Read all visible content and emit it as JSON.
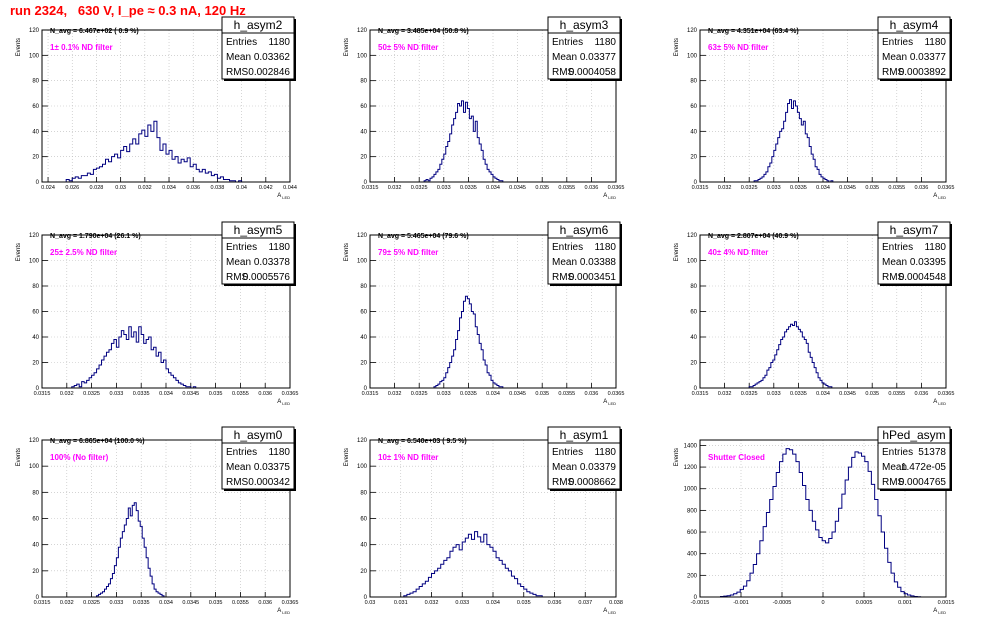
{
  "title": "run 2324,   630 V, I_pe ≈ 0.3 nA, 120 Hz",
  "colors": {
    "hist": "#000080",
    "note": "#ff00ff",
    "title": "#ff0000",
    "grid": "#bbbbbb"
  },
  "chart_data": [
    {
      "type": "histogram",
      "name": "h_asym2",
      "navg": "N_avg = 6.467e+02 ( 0.9 %)",
      "note": "1± 0.1% ND filter",
      "stats": {
        "Entries": "1180",
        "Mean": "0.03362",
        "RMS": "0.002846"
      },
      "ylabel": "Events",
      "xlabel": "A_LED",
      "ylim": [
        0,
        120
      ],
      "yticks": [
        0,
        20,
        40,
        60,
        80,
        100,
        120
      ],
      "xlim": [
        0.0235,
        0.044
      ],
      "xticks": [
        "0.024",
        "0.026",
        "0.028",
        "0.03",
        "0.032",
        "0.034",
        "0.036",
        "0.038",
        "0.04",
        "0.042",
        "0.044"
      ],
      "grid": true,
      "stats_box": "top-right",
      "bin_start": 0.0255,
      "bin_width": 0.00025,
      "counts": [
        2,
        1,
        3,
        4,
        3,
        5,
        5,
        7,
        6,
        10,
        11,
        12,
        14,
        18,
        16,
        20,
        22,
        19,
        25,
        28,
        24,
        30,
        34,
        30,
        38,
        41,
        36,
        45,
        40,
        48,
        35,
        25,
        30,
        22,
        25,
        18,
        20,
        15,
        18,
        16,
        19,
        12,
        14,
        10,
        8,
        10,
        7,
        8,
        5,
        6,
        3,
        4,
        2,
        2,
        1,
        1,
        0,
        1
      ]
    },
    {
      "type": "histogram",
      "name": "h_asym3",
      "navg": "N_avg = 3.485e+04 (50.8 %)",
      "note": "50± 5% ND filter",
      "stats": {
        "Entries": "1180",
        "Mean": "0.03377",
        "RMS": "0.0004058"
      },
      "ylabel": "Events",
      "xlabel": "A_LED",
      "ylim": [
        0,
        120
      ],
      "yticks": [
        0,
        20,
        40,
        60,
        80,
        100,
        120
      ],
      "xlim": [
        0.0315,
        0.0365
      ],
      "xticks": [
        "0.0315",
        "0.032",
        "0.0325",
        "0.033",
        "0.0335",
        "0.034",
        "0.0345",
        "0.035",
        "0.0355",
        "0.036",
        "0.0365"
      ],
      "grid": true,
      "stats_box": "top-right",
      "bin_start": 0.0326,
      "bin_width": 4e-05,
      "counts": [
        1,
        2,
        1,
        3,
        4,
        6,
        8,
        10,
        14,
        18,
        22,
        28,
        32,
        38,
        45,
        50,
        55,
        62,
        60,
        64,
        55,
        63,
        58,
        50,
        52,
        40,
        48,
        35,
        30,
        25,
        18,
        14,
        10,
        8,
        6,
        4,
        3,
        2,
        1,
        1
      ]
    },
    {
      "type": "histogram",
      "name": "h_asym4",
      "navg": "N_avg = 4.351e+04 (63.4 %)",
      "note": "63± 5% ND filter",
      "stats": {
        "Entries": "1180",
        "Mean": "0.03377",
        "RMS": "0.0003892"
      },
      "ylabel": "Events",
      "xlabel": "A_LED",
      "ylim": [
        0,
        120
      ],
      "yticks": [
        0,
        20,
        40,
        60,
        80,
        100,
        120
      ],
      "xlim": [
        0.0315,
        0.0365
      ],
      "xticks": [
        "0.0315",
        "0.032",
        "0.0325",
        "0.033",
        "0.0335",
        "0.034",
        "0.0345",
        "0.035",
        "0.0355",
        "0.036",
        "0.0365"
      ],
      "grid": true,
      "stats_box": "top-right",
      "bin_start": 0.0326,
      "bin_width": 4e-05,
      "counts": [
        1,
        1,
        2,
        3,
        4,
        6,
        8,
        12,
        15,
        20,
        25,
        30,
        35,
        40,
        42,
        48,
        55,
        62,
        65,
        58,
        64,
        60,
        55,
        50,
        45,
        48,
        38,
        35,
        28,
        22,
        18,
        12,
        10,
        6,
        4,
        3,
        2,
        1,
        0,
        1
      ]
    },
    {
      "type": "histogram",
      "name": "h_asym5",
      "navg": "N_avg = 1.790e+04 (26.1 %)",
      "note": "25± 2.5% ND filter",
      "stats": {
        "Entries": "1180",
        "Mean": "0.03378",
        "RMS": "0.0005576"
      },
      "ylabel": "Events",
      "xlabel": "A_LED",
      "ylim": [
        0,
        120
      ],
      "yticks": [
        0,
        20,
        40,
        60,
        80,
        100,
        120
      ],
      "xlim": [
        0.0315,
        0.0365
      ],
      "xticks": [
        "0.0315",
        "0.032",
        "0.0325",
        "0.033",
        "0.0335",
        "0.034",
        "0.0345",
        "0.035",
        "0.0355",
        "0.036",
        "0.0365"
      ],
      "grid": true,
      "stats_box": "top-right",
      "bin_start": 0.0321,
      "bin_width": 5e-05,
      "counts": [
        1,
        2,
        3,
        1,
        5,
        4,
        6,
        8,
        10,
        12,
        15,
        18,
        22,
        25,
        28,
        30,
        35,
        38,
        32,
        40,
        45,
        42,
        38,
        48,
        40,
        44,
        36,
        48,
        42,
        35,
        38,
        40,
        30,
        32,
        25,
        28,
        20,
        22,
        15,
        12,
        10,
        8,
        6,
        4,
        3,
        2,
        1,
        1,
        0,
        1
      ]
    },
    {
      "type": "histogram",
      "name": "h_asym6",
      "navg": "N_avg = 5.465e+04 (79.6 %)",
      "note": "79± 5% ND filter",
      "stats": {
        "Entries": "1180",
        "Mean": "0.03388",
        "RMS": "0.0003451"
      },
      "ylabel": "Events",
      "xlabel": "A_LED",
      "ylim": [
        0,
        120
      ],
      "yticks": [
        0,
        20,
        40,
        60,
        80,
        100,
        120
      ],
      "xlim": [
        0.0315,
        0.0365
      ],
      "xticks": [
        "0.0315",
        "0.032",
        "0.0325",
        "0.033",
        "0.0335",
        "0.034",
        "0.0345",
        "0.035",
        "0.0355",
        "0.036",
        "0.0365"
      ],
      "grid": true,
      "stats_box": "top-right",
      "bin_start": 0.0328,
      "bin_width": 4e-05,
      "counts": [
        1,
        2,
        3,
        5,
        6,
        8,
        12,
        16,
        20,
        25,
        30,
        38,
        45,
        55,
        60,
        68,
        72,
        70,
        66,
        60,
        58,
        48,
        42,
        35,
        30,
        22,
        18,
        12,
        10,
        6,
        4,
        3,
        2,
        1,
        1
      ]
    },
    {
      "type": "histogram",
      "name": "h_asym7",
      "navg": "N_avg = 2.807e+04 (40.9 %)",
      "note": "40± 4% ND filter",
      "stats": {
        "Entries": "1180",
        "Mean": "0.03395",
        "RMS": "0.0004548"
      },
      "ylabel": "Events",
      "xlabel": "A_LED",
      "ylim": [
        0,
        120
      ],
      "yticks": [
        0,
        20,
        40,
        60,
        80,
        100,
        120
      ],
      "xlim": [
        0.0315,
        0.0365
      ],
      "xticks": [
        "0.0315",
        "0.032",
        "0.0325",
        "0.033",
        "0.0335",
        "0.034",
        "0.0345",
        "0.035",
        "0.0355",
        "0.036",
        "0.0365"
      ],
      "grid": true,
      "stats_box": "top-right",
      "bin_start": 0.0325,
      "bin_width": 4e-05,
      "counts": [
        1,
        1,
        2,
        3,
        4,
        5,
        6,
        8,
        10,
        14,
        16,
        20,
        22,
        26,
        30,
        34,
        38,
        40,
        44,
        46,
        48,
        50,
        49,
        52,
        48,
        46,
        44,
        40,
        38,
        35,
        28,
        24,
        20,
        16,
        12,
        8,
        6,
        4,
        3,
        2,
        1,
        1
      ]
    },
    {
      "type": "histogram",
      "name": "h_asym0",
      "navg": "N_avg = 6.865e+04 (100.0 %)",
      "note": "100% (No filter)",
      "stats": {
        "Entries": "1180",
        "Mean": "0.03375",
        "RMS": "0.000342"
      },
      "ylabel": "Events",
      "xlabel": "A_LED",
      "ylim": [
        0,
        120
      ],
      "yticks": [
        0,
        20,
        40,
        60,
        80,
        100,
        120
      ],
      "xlim": [
        0.0315,
        0.0365
      ],
      "xticks": [
        "0.0315",
        "0.032",
        "0.0325",
        "0.033",
        "0.0335",
        "0.034",
        "0.0345",
        "0.035",
        "0.0355",
        "0.036",
        "0.0365"
      ],
      "grid": true,
      "stats_box": "top-right",
      "bin_start": 0.0326,
      "bin_width": 4e-05,
      "counts": [
        1,
        2,
        3,
        4,
        6,
        8,
        10,
        14,
        18,
        24,
        30,
        38,
        45,
        50,
        55,
        60,
        68,
        62,
        70,
        72,
        66,
        58,
        54,
        45,
        38,
        30,
        22,
        16,
        10,
        6,
        4,
        3,
        2,
        1
      ]
    },
    {
      "type": "histogram",
      "name": "h_asym1",
      "navg": "N_avg = 6.540e+03 ( 9.5 %)",
      "note": "10± 1% ND filter",
      "stats": {
        "Entries": "1180",
        "Mean": "0.03379",
        "RMS": "0.0008662"
      },
      "ylabel": "Events",
      "xlabel": "A_LED",
      "ylim": [
        0,
        120
      ],
      "yticks": [
        0,
        20,
        40,
        60,
        80,
        100,
        120
      ],
      "xlim": [
        0.03,
        0.038
      ],
      "xticks": [
        "0.03",
        "0.031",
        "0.032",
        "0.033",
        "0.034",
        "0.035",
        "0.036",
        "0.037",
        "0.038"
      ],
      "grid": true,
      "stats_box": "top-right",
      "bin_start": 0.0311,
      "bin_width": 0.0001,
      "counts": [
        1,
        2,
        3,
        4,
        6,
        8,
        10,
        12,
        15,
        18,
        20,
        22,
        25,
        28,
        30,
        35,
        38,
        40,
        36,
        42,
        45,
        48,
        44,
        50,
        46,
        42,
        48,
        40,
        38,
        35,
        30,
        28,
        25,
        22,
        20,
        16,
        14,
        10,
        8,
        6,
        4,
        3,
        2,
        1,
        1
      ]
    },
    {
      "type": "histogram",
      "name": "hPed_asym",
      "navg": "",
      "note": "Shutter Closed",
      "stats": {
        "Entries": "51378",
        "Mean": "1.472e-05",
        "RMS": "0.0004765"
      },
      "ylabel": "Events",
      "xlabel": "A_LED",
      "ylim": [
        0,
        1450
      ],
      "yticks": [
        0,
        200,
        400,
        600,
        800,
        1000,
        1200,
        1400
      ],
      "xlim": [
        -0.0015,
        0.0015
      ],
      "xticks": [
        "-0.0015",
        "-0.001",
        "-0.0005",
        "0",
        "0.0005",
        "0.001",
        "0.0015"
      ],
      "grid": true,
      "stats_box": "top-right",
      "bin_start": -0.00125,
      "bin_width": 4e-05,
      "counts": [
        5,
        8,
        12,
        18,
        30,
        45,
        70,
        100,
        150,
        220,
        300,
        400,
        520,
        650,
        780,
        900,
        1020,
        1150,
        1250,
        1320,
        1370,
        1360,
        1320,
        1250,
        1150,
        1030,
        900,
        800,
        700,
        620,
        550,
        520,
        500,
        540,
        600,
        700,
        820,
        950,
        1080,
        1200,
        1290,
        1340,
        1330,
        1300,
        1250,
        1160,
        1040,
        900,
        750,
        600,
        450,
        320,
        220,
        140,
        90,
        50,
        30,
        18,
        10,
        5,
        2
      ]
    }
  ]
}
